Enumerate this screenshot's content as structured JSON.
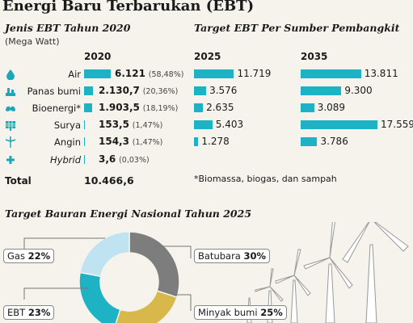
{
  "title": "Energi Baru Terbarukan (EBT)",
  "left_header": "Jenis EBT Tahun 2020",
  "left_sub": "(Mega Watt)",
  "right_header": "Target EBT Per Sumber Pembangkit",
  "years": [
    "2020",
    "2025",
    "2035"
  ],
  "footnote": "*Biomassa, biogas, dan sampah",
  "total_label": "Total",
  "total_value": "10.466,6",
  "chart_data": [
    {
      "type": "bar",
      "title": "Jenis EBT Tahun 2020",
      "unit": "(Mega Watt)",
      "categories": [
        "Air",
        "Panas bumi",
        "Bioenergi*",
        "Surya",
        "Angin",
        "Hybrid"
      ],
      "icons": [
        "water-drop-icon",
        "geothermal-icon",
        "leaf-icon",
        "solar-panel-icon",
        "wind-turbine-icon",
        "plus-icon"
      ],
      "values": [
        6121,
        2130.7,
        1903.5,
        153.5,
        154.3,
        3.6
      ],
      "value_labels": [
        "6.121",
        "2.130,7",
        "1.903,5",
        "153,5",
        "154,3",
        "3,6"
      ],
      "pct_labels": [
        "(58,48%)",
        "(20,36%)",
        "(18,19%)",
        "(1,47%)",
        "(1,47%)",
        "(0,03%)"
      ]
    },
    {
      "type": "bar",
      "title": "Target EBT Per Sumber Pembangkit",
      "categories": [
        "Air",
        "Panas bumi",
        "Bioenergi*",
        "Surya",
        "Angin"
      ],
      "series": [
        {
          "name": "2025",
          "values": [
            11719,
            3576,
            2635,
            5403,
            1278
          ],
          "labels": [
            "11.719",
            "3.576",
            "2.635",
            "5.403",
            "1.278"
          ]
        },
        {
          "name": "2035",
          "values": [
            13811,
            9300,
            3089,
            17559,
            3786
          ],
          "labels": [
            "13.811",
            "9.300",
            "3.089",
            "17.559",
            "3.786"
          ]
        }
      ]
    },
    {
      "type": "pie",
      "title": "Target Bauran Energi Nasional Tahun 2025",
      "categories": [
        "Batubara",
        "Minyak bumi",
        "EBT",
        "Gas"
      ],
      "values": [
        30,
        25,
        23,
        22
      ],
      "value_labels": [
        "30%",
        "25%",
        "23%",
        "22%"
      ],
      "colors": [
        "#7d7d7d",
        "#d8b84a",
        "#1eb3c4",
        "#bfe3f0"
      ]
    }
  ]
}
